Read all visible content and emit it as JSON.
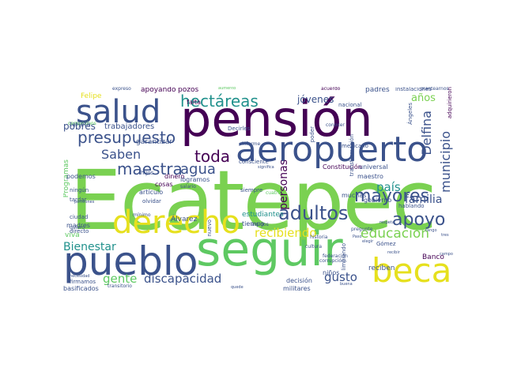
{
  "palette": {
    "dark_purple": "#440154",
    "indigo": "#3b528b",
    "teal": "#21918c",
    "green": "#5ec962",
    "light_green": "#7ad151",
    "yellow": "#fde725",
    "gold": "#d9e021"
  },
  "words": [
    "Ecatepec",
    "pensión",
    "seguir",
    "pueblo",
    "beca",
    "derecho",
    "aeropuerto",
    "salud",
    "hectáreas",
    "presupuesto",
    "adultos",
    "mayores",
    "apoyo",
    "educación",
    "maestra",
    "toda",
    "agua",
    "Saben",
    "municipio",
    "Delfina",
    "país",
    "familia",
    "recibiendo",
    "personas",
    "discapacidad",
    "gente",
    "gusto",
    "Bienestar",
    "pobres",
    "años",
    "jóvenes",
    "trabajadores",
    "Programas",
    "viva",
    "apoyando",
    "pozos",
    "Felipe",
    "padres",
    "estudiantes",
    "garantizar",
    "dinero",
    "cosas",
    "podemos",
    "madres",
    "campesinos",
    "maestro",
    "niños",
    "Banco",
    "reciben",
    "Gómez",
    "tiempo",
    "firmamos",
    "basificados",
    "decisión",
    "militares",
    "limpiando",
    "instalaciones",
    "gobierno",
    "hablando",
    "tarjeta",
    "logramos",
    "salario",
    "Constitución",
    "universal",
    "transformación",
    "mexicano",
    "Álvarez",
    "hijos",
    "artículo",
    "olvidar",
    "ningún",
    "tardar",
    "ciudad",
    "directo",
    "siempre",
    "cuatro",
    "muchas",
    "quiero",
    "mínimo",
    "nuevo",
    "amigos",
    "falta",
    "expreso",
    "aumento",
    "acuerdo",
    "Ángeles",
    "plantearnos",
    "cultura",
    "federación",
    "historia",
    "corrupción",
    "poder",
    "Decirles",
    "conocer",
    "consciente",
    "significa",
    "informe",
    "nacional",
    "adquirieron",
    "necesidad",
    "transitorio",
    "quede",
    "buena",
    "respeta",
    "campo",
    "rango",
    "tres",
    "Paso",
    "pregunte",
    "elegir",
    "recibir",
    "pensiones"
  ]
}
